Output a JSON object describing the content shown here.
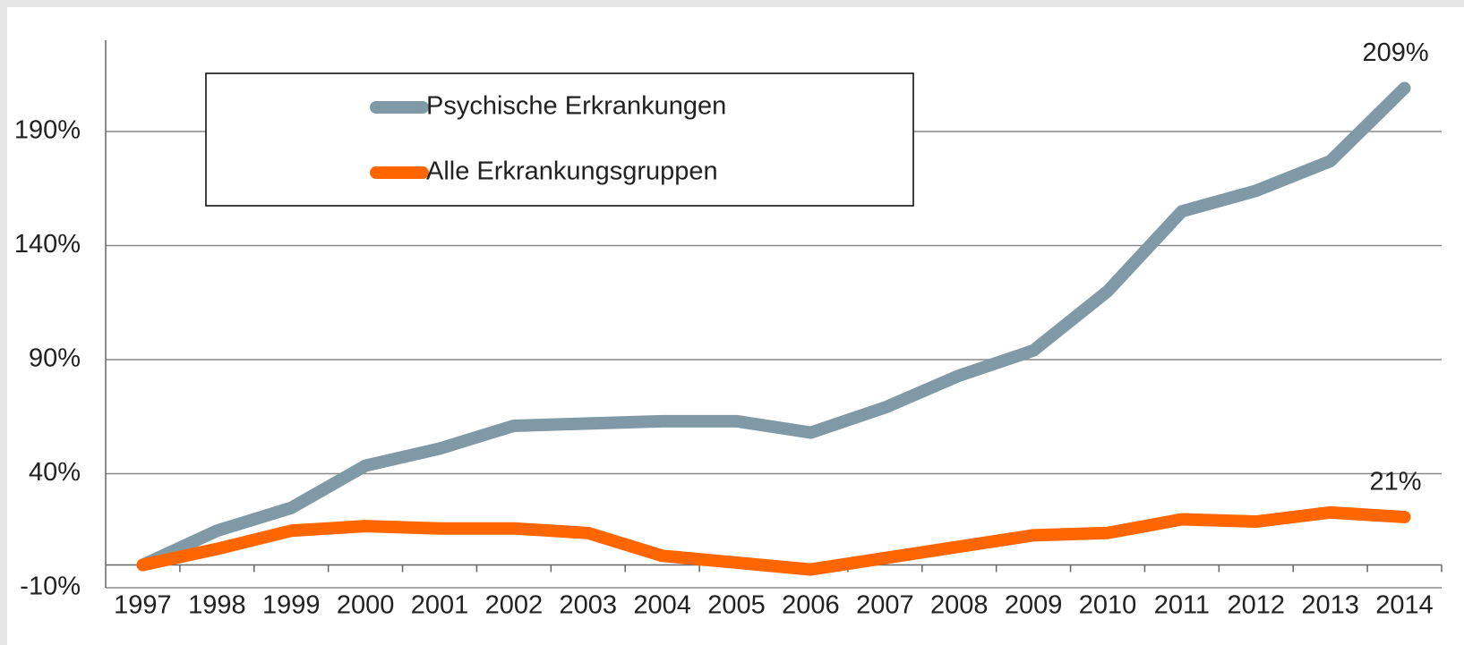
{
  "chart_data": {
    "type": "line",
    "categories": [
      "1997",
      "1998",
      "1999",
      "2000",
      "2001",
      "2002",
      "2003",
      "2004",
      "2005",
      "2006",
      "2007",
      "2008",
      "2009",
      "2010",
      "2011",
      "2012",
      "2013",
      "2014"
    ],
    "series": [
      {
        "name": "Psychische Erkrankungen",
        "color": "#7f9aa6",
        "values": [
          0,
          15,
          25,
          43.5,
          51,
          61,
          62,
          63,
          63,
          58,
          69,
          83,
          94,
          120,
          155,
          164,
          177,
          209
        ],
        "value_labels": [
          null,
          null,
          null,
          null,
          null,
          null,
          null,
          null,
          null,
          null,
          null,
          null,
          null,
          null,
          null,
          null,
          null,
          "209%"
        ]
      },
      {
        "name": "Alle Erkrankungsgruppen",
        "color": "#ff6600",
        "values": [
          0,
          7,
          15,
          17,
          16,
          16,
          14,
          4,
          1,
          -2,
          3,
          8,
          13,
          14,
          20,
          19,
          23,
          21
        ],
        "value_labels": [
          null,
          null,
          null,
          null,
          null,
          null,
          null,
          null,
          null,
          null,
          null,
          null,
          null,
          null,
          null,
          null,
          null,
          "21%"
        ]
      }
    ],
    "ylim": [
      -10,
      230
    ],
    "yticks": [
      {
        "value": -10,
        "label": "-10%"
      },
      {
        "value": 40,
        "label": "40%"
      },
      {
        "value": 90,
        "label": "90%"
      },
      {
        "value": 140,
        "label": "140%"
      },
      {
        "value": 190,
        "label": "190%"
      }
    ],
    "grid": true,
    "legend": "upper left"
  }
}
